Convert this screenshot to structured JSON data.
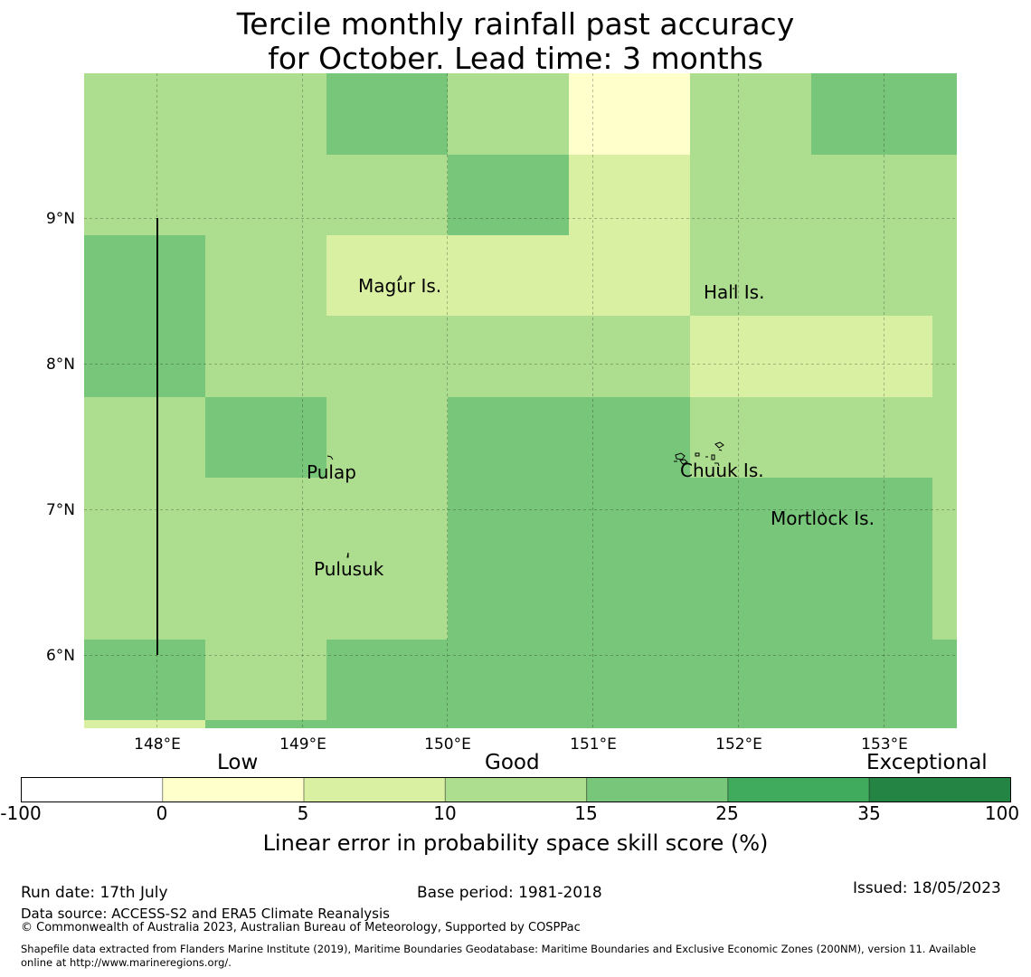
{
  "title": {
    "line1": "Tercile monthly rainfall past accuracy",
    "line2": "for October. Lead time: 3 months"
  },
  "map": {
    "lat_labels": [
      "9°N",
      "8°N",
      "7°N",
      "6°N"
    ],
    "lon_labels": [
      "148°E",
      "149°E",
      "150°E",
      "151°E",
      "152°E",
      "153°E"
    ],
    "places": [
      "Magur Is.",
      "Hall Is.",
      "Pulap",
      "Chuuk Is.",
      "Mortlock Is.",
      "Pulusuk"
    ],
    "grid_colors": {
      "c1": "#feffcb",
      "c2": "#d9efa2",
      "c3": "#addd8e",
      "c4": "#78c679",
      "c5": "#41ab5d",
      "c6": "#238443"
    },
    "grid": [
      [
        3,
        3,
        4,
        3,
        1,
        3,
        4,
        4
      ],
      [
        3,
        3,
        3,
        4,
        2,
        3,
        3,
        3
      ],
      [
        4,
        3,
        2,
        2,
        2,
        3,
        3,
        3
      ],
      [
        4,
        3,
        3,
        3,
        3,
        2,
        2,
        3
      ],
      [
        3,
        4,
        3,
        4,
        4,
        3,
        3,
        3
      ],
      [
        3,
        3,
        3,
        4,
        4,
        4,
        4,
        3
      ],
      [
        3,
        3,
        3,
        4,
        4,
        4,
        4,
        3
      ],
      [
        4,
        3,
        4,
        4,
        4,
        4,
        4,
        4
      ]
    ]
  },
  "colorbar": {
    "categories": [
      "Low",
      "Good",
      "Exceptional"
    ],
    "ticks": [
      "-100",
      "0",
      "5",
      "10",
      "15",
      "25",
      "35",
      "100"
    ],
    "colors": [
      "#ffffff",
      "#feffcb",
      "#d9efa2",
      "#addd8e",
      "#78c679",
      "#41ab5d",
      "#238443"
    ],
    "label": "Linear error in probability space skill score (%)"
  },
  "footer": {
    "run_date": "Run date: 17th July",
    "base_period": "Base period: 1981-2018",
    "issued": "Issued: 18/05/2023",
    "data_source": "Data source: ACCESS-S2 and ERA5 Climate Reanalysis",
    "copyright": "© Commonwealth of Australia 2023, Australian Bureau of Meteorology, Supported by COSPPac",
    "shapefile1": "Shapefile data extracted from Flanders Marine Institute (2019), Maritime Boundaries Geodatabase: Maritime Boundaries and Exclusive Economic Zones (200NM), version 11. Available",
    "shapefile2": "online at http://www.marineregions.org/."
  }
}
